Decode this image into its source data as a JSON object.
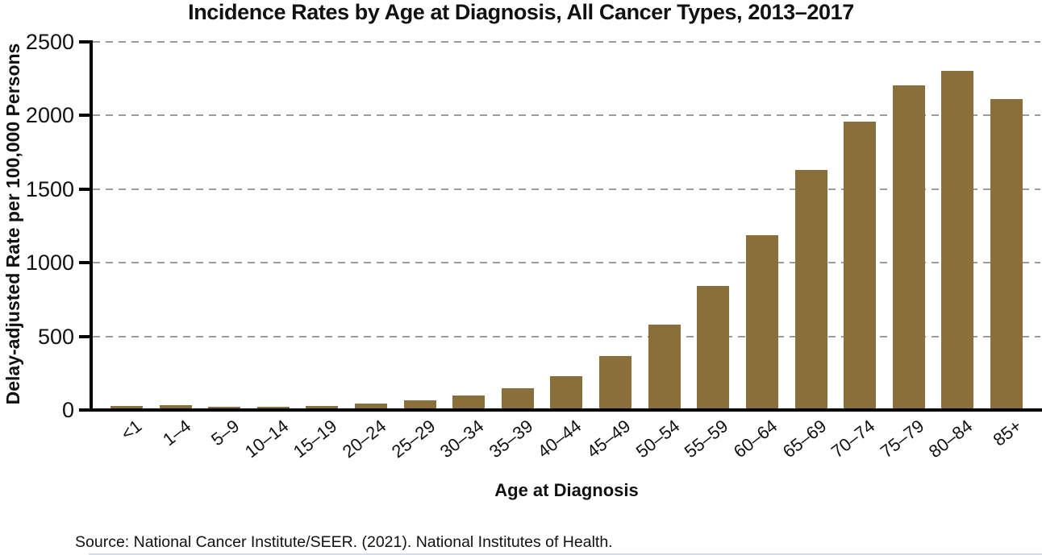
{
  "chart_data": {
    "type": "bar",
    "title": "Incidence Rates by Age at Diagnosis, All Cancer Types, 2013–2017",
    "xlabel": "Age at Diagnosis",
    "ylabel": "Delay-adjusted Rate per 100,000 Persons",
    "categories": [
      "<1",
      "1–4",
      "5–9",
      "10–14",
      "15–19",
      "20–24",
      "25–29",
      "30–34",
      "35–39",
      "40–44",
      "45–49",
      "50–54",
      "55–59",
      "60–64",
      "65–69",
      "70–74",
      "75–79",
      "80–84",
      "85+"
    ],
    "values": [
      30,
      35,
      20,
      20,
      30,
      45,
      65,
      100,
      145,
      230,
      365,
      580,
      840,
      1185,
      1630,
      1960,
      2205,
      2305,
      2110
    ],
    "ylim": [
      0,
      2500
    ],
    "yticks": [
      0,
      500,
      1000,
      1500,
      2000,
      2500
    ],
    "grid": "horizontal-dashed",
    "legend": "none",
    "bar_color": "#8B6F3B",
    "axis_color": "#000000",
    "gridline_color": "#9c9c9c"
  },
  "source": {
    "text": "Source: National Cancer Institute/SEER. (2021). National Institutes of Health."
  },
  "misc": {
    "bottom_divider_color": "#d4deeb"
  }
}
